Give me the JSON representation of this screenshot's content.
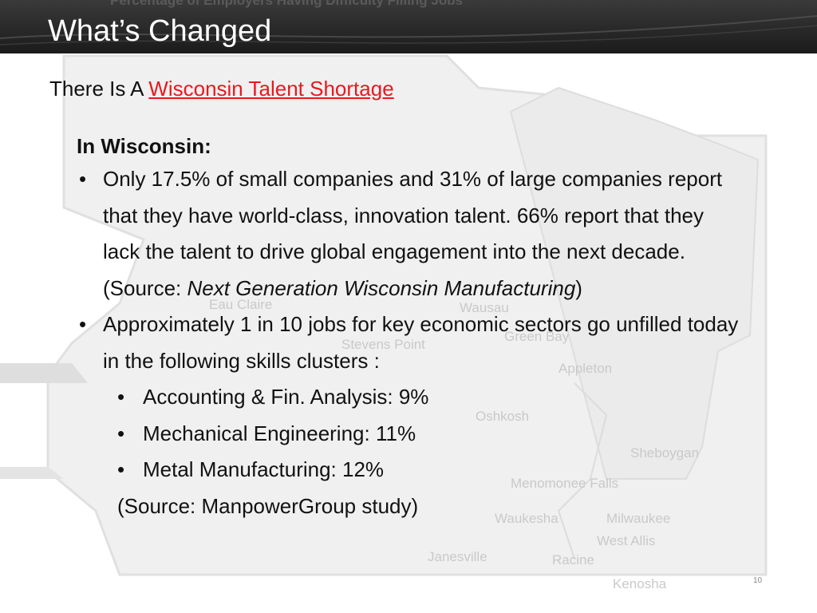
{
  "header": {
    "ghost_title": "Percentage of Employers Having Difficulty Filling Jobs",
    "title": "What’s Changed"
  },
  "subtitle": {
    "prefix": "There Is A ",
    "link": "Wisconsin Talent Shortage "
  },
  "content": {
    "heading": "In Wisconsin:",
    "bullet1": {
      "text": "Only 17.5% of small companies and 31% of large companies report that they have world-class, innovation talent.  66% report that they lack the talent to drive global engagement into the next decade. (Source: ",
      "italic": "Next Generation Wisconsin Manufacturing",
      "suffix": ")"
    },
    "bullet2": {
      "text": "Approximately 1 in 10 jobs for key economic sectors go unfilled today in the following skills clusters :"
    },
    "sub_bullets": [
      "Accounting & Fin. Analysis: 9%",
      "Mechanical Engineering: 11%",
      "Metal Manufacturing: 12%"
    ],
    "source": "(Source: ManpowerGroup study)"
  },
  "background_map_labels": [
    "Eau Claire",
    "Wausau",
    "Stevens Point",
    "Green Bay",
    "Appleton",
    "Oshkosh",
    "Sheboygan",
    "Menomonee Falls",
    "Waukesha",
    "Milwaukee",
    "West Allis",
    "Racine",
    "Kenosha",
    "Janesville"
  ],
  "page_number": "10",
  "colors": {
    "link": "#e8191f",
    "header_bg": "#222222",
    "title": "#ffffff"
  }
}
